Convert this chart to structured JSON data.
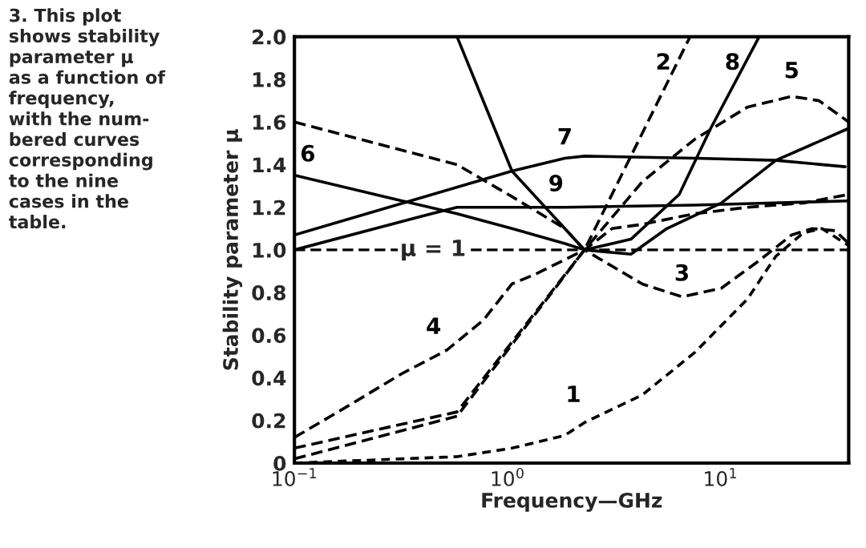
{
  "chart_data": {
    "type": "line",
    "xlabel": "Frequency—GHz",
    "ylabel": "Stability parameter μ",
    "log": "x",
    "xlim": [
      0.1,
      40
    ],
    "xticks": [
      {
        "value": 0.1,
        "label": "10$^{−1}$"
      },
      {
        "value": 1,
        "label": "10$^{0}$"
      },
      {
        "value": 10,
        "label": "10$^{1}$"
      }
    ],
    "ylim": [
      0,
      2.0
    ],
    "yticks": [
      0,
      {
        "value": 0.2,
        "label": "0.2"
      },
      {
        "value": 0.4,
        "label": "0.4"
      },
      {
        "value": 0.6,
        "label": "0.6"
      },
      {
        "value": 0.8,
        "label": "0.8"
      },
      {
        "value": 1.0,
        "label": "1.0"
      },
      {
        "value": 1.2,
        "label": "1.2"
      },
      {
        "value": 1.4,
        "label": "1.4"
      },
      {
        "value": 1.6,
        "label": "1.6"
      },
      {
        "value": 1.8,
        "label": "1.8"
      },
      {
        "value": 2.0,
        "label": "2.0"
      }
    ],
    "grid": false,
    "legend": false,
    "marker": "none",
    "series": [
      {
        "name": "1",
        "color": "#000000",
        "line_style": "dotted",
        "x": [
          0.1,
          0.58,
          1.05,
          1.86,
          2.3,
          4.3,
          7.6,
          13.4,
          18.2,
          24.5,
          30,
          40
        ],
        "values": [
          0,
          0.03,
          0.07,
          0.13,
          0.19,
          0.32,
          0.52,
          0.77,
          0.97,
          1.08,
          1.1,
          1.02
        ]
      },
      {
        "name": "2",
        "color": "#000000",
        "line_style": "dashed",
        "x": [
          0.1,
          0.58,
          2.3,
          7.2
        ],
        "values": [
          0.02,
          0.22,
          1.0,
          2.0
        ]
      },
      {
        "name": "3",
        "color": "#000000",
        "line_style": "dashed",
        "x": [
          0.1,
          0.58,
          2.3,
          4.3,
          6.6,
          10.1,
          15.2,
          21.6,
          27,
          34.6,
          40
        ],
        "values": [
          0.07,
          0.24,
          1.0,
          0.84,
          0.78,
          0.82,
          0.95,
          1.07,
          1.1,
          1.09,
          1.03
        ]
      },
      {
        "name": "4",
        "color": "#000000",
        "line_style": "dashed",
        "x": [
          0.1,
          0.18,
          0.32,
          0.52,
          0.77,
          1.05,
          1.38,
          2.3,
          3.1,
          4.3,
          7.6,
          13.4,
          24.5,
          40
        ],
        "values": [
          0.12,
          0.27,
          0.42,
          0.53,
          0.67,
          0.84,
          0.89,
          1.0,
          1.1,
          1.12,
          1.17,
          1.2,
          1.22,
          1.26
        ]
      },
      {
        "name": "5",
        "color": "#000000",
        "line_style": "dashed",
        "x": [
          0.1,
          0.58,
          1.05,
          1.86,
          2.3,
          4.3,
          7.6,
          13.4,
          21.6,
          29,
          40
        ],
        "values": [
          1.6,
          1.4,
          1.25,
          1.1,
          1.0,
          1.32,
          1.52,
          1.67,
          1.72,
          1.7,
          1.6
        ]
      },
      {
        "name": "6",
        "color": "#000000",
        "line_style": "solid",
        "x": [
          0.1,
          0.32,
          0.58,
          1.05,
          1.86,
          2.3,
          3.8,
          5.6,
          10.1,
          18.2,
          40
        ],
        "values": [
          1.35,
          1.23,
          1.17,
          1.1,
          1.03,
          1.0,
          0.98,
          1.1,
          1.22,
          1.42,
          1.57
        ]
      },
      {
        "name": "7",
        "color": "#000000",
        "line_style": "solid",
        "x": [
          0.1,
          1.05,
          1.86,
          2.3,
          7.6,
          18.2,
          38.5
        ],
        "values": [
          1.07,
          1.37,
          1.43,
          1.44,
          1.43,
          1.42,
          1.39
        ]
      },
      {
        "name": "8",
        "color": "#000000",
        "line_style": "solid",
        "x": [
          0.58,
          1.05,
          1.86,
          2.3,
          3.8,
          6.4,
          9.0,
          15.2
        ],
        "values": [
          2.0,
          1.37,
          1.1,
          1.0,
          1.05,
          1.26,
          1.57,
          2.0
        ]
      },
      {
        "name": "9",
        "color": "#000000",
        "line_style": "solid",
        "x": [
          0.1,
          0.44,
          0.58,
          1.86,
          7.6,
          40
        ],
        "values": [
          1.0,
          1.17,
          1.2,
          1.2,
          1.21,
          1.23
        ]
      }
    ],
    "ref_lines": [
      {
        "axis": "y",
        "value": 1.0,
        "label": "μ = 1",
        "line_style": "dashed",
        "color": "#000000"
      }
    ],
    "annotations": [
      "3. This plot\nshows stability\nparameter μ\nas a function of\nfrequency,\nwith the num-\nbered curves\ncorresponding\nto the nine\ncases in the\ntable."
    ]
  }
}
